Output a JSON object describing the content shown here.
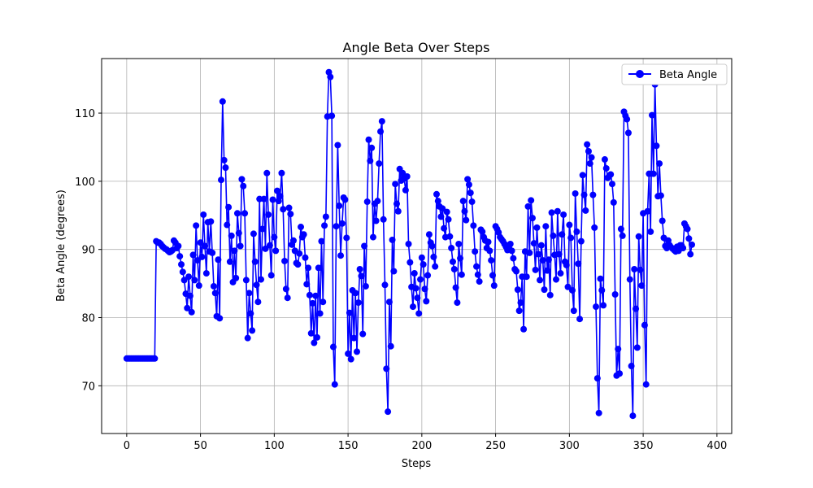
{
  "chart_data": {
    "type": "line",
    "title": "Angle Beta Over Steps",
    "xlabel": "Steps",
    "ylabel": "Beta Angle (degrees)",
    "xlim": [
      -17,
      410
    ],
    "ylim": [
      63,
      118
    ],
    "xticks": [
      0,
      50,
      100,
      150,
      200,
      250,
      300,
      350,
      400
    ],
    "yticks": [
      70,
      80,
      90,
      100,
      110
    ],
    "grid": true,
    "legend": "top-right",
    "color": "#0000ff",
    "marker": "circle",
    "series": [
      {
        "name": "Beta Angle",
        "values": [
          74.0,
          74.0,
          74.0,
          74.0,
          74.0,
          74.0,
          74.0,
          74.0,
          74.0,
          74.0,
          74.0,
          74.0,
          74.0,
          74.0,
          74.0,
          74.0,
          74.0,
          74.0,
          74.0,
          74.0,
          91.2,
          91.0,
          91.0,
          90.8,
          90.5,
          90.3,
          90.1,
          90.0,
          89.8,
          89.6,
          89.7,
          89.9,
          91.3,
          91.0,
          90.2,
          90.5,
          89.0,
          87.8,
          86.7,
          85.5,
          83.5,
          81.4,
          86.0,
          83.2,
          80.8,
          89.2,
          85.5,
          93.5,
          88.4,
          84.7,
          91.0,
          88.9,
          95.1,
          90.5,
          86.5,
          94.0,
          89.7,
          94.1,
          89.5,
          84.6,
          83.6,
          80.2,
          88.5,
          79.9,
          100.2,
          111.7,
          103.1,
          102.0,
          93.6,
          96.2,
          88.2,
          92.0,
          85.2,
          89.8,
          85.8,
          95.3,
          92.4,
          90.5,
          100.3,
          99.3,
          95.3,
          85.5,
          77.0,
          83.6,
          80.6,
          78.1,
          92.3,
          88.2,
          84.8,
          82.3,
          97.4,
          85.6,
          93.0,
          97.4,
          90.1,
          101.2,
          95.1,
          90.6,
          86.2,
          97.3,
          91.8,
          89.8,
          98.6,
          97.1,
          97.8,
          101.2,
          95.9,
          88.3,
          84.2,
          82.9,
          96.1,
          95.2,
          90.7,
          91.3,
          89.8,
          88.0,
          87.8,
          89.4,
          93.3,
          91.8,
          92.2,
          88.8,
          84.9,
          87.3,
          83.3,
          77.7,
          82.1,
          76.3,
          83.2,
          77.1,
          87.3,
          80.6,
          91.2,
          82.3,
          93.5,
          94.8,
          109.5,
          116.0,
          115.3,
          109.6,
          75.7,
          70.2,
          93.4,
          105.3,
          96.4,
          89.1,
          93.8,
          97.6,
          97.3,
          91.7,
          74.7,
          80.7,
          73.9,
          84.0,
          77.0,
          83.6,
          75.0,
          82.2,
          87.1,
          86.1,
          77.6,
          90.5,
          84.6,
          97.0,
          106.1,
          103.0,
          104.9,
          91.8,
          96.7,
          94.2,
          97.1,
          102.6,
          107.3,
          108.8,
          94.4,
          84.8,
          72.5,
          66.2,
          82.3,
          75.8,
          91.4,
          86.8,
          99.6,
          96.7,
          95.6,
          101.8,
          100.1,
          101.2,
          100.4,
          98.7,
          100.7,
          90.8,
          88.1,
          84.5,
          81.6,
          86.5,
          84.3,
          82.9,
          80.6,
          85.6,
          88.8,
          87.8,
          84.2,
          82.4,
          86.2,
          92.2,
          91.0,
          90.5,
          88.9,
          87.5,
          98.1,
          97.1,
          96.3,
          94.8,
          96.0,
          93.1,
          91.8,
          95.5,
          94.4,
          91.9,
          90.2,
          88.2,
          87.1,
          84.4,
          82.2,
          90.8,
          88.7,
          86.3,
          97.1,
          95.6,
          94.3,
          100.3,
          99.5,
          98.3,
          97.0,
          93.5,
          89.7,
          87.5,
          86.3,
          85.3,
          92.9,
          92.6,
          91.8,
          91.3,
          90.2,
          91.1,
          89.8,
          88.4,
          86.2,
          84.7,
          93.4,
          93.0,
          92.5,
          91.8,
          91.5,
          91.2,
          90.8,
          90.4,
          89.9,
          90.3,
          90.8,
          89.8,
          88.7,
          87.1,
          86.8,
          84.1,
          81.0,
          82.2,
          86.0,
          78.3,
          89.7,
          86.0,
          96.3,
          89.5,
          97.2,
          94.6,
          90.9,
          87.0,
          93.2,
          89.3,
          85.5,
          90.6,
          88.4,
          84.1,
          93.4,
          86.9,
          88.5,
          83.3,
          95.4,
          92.0,
          89.2,
          85.6,
          95.6,
          89.3,
          86.5,
          92.2,
          95.1,
          88.2,
          87.7,
          84.5,
          93.6,
          91.7,
          84.0,
          81.0,
          98.2,
          92.6,
          87.9,
          79.8,
          91.2,
          100.9,
          98.0,
          95.7,
          105.4,
          104.4,
          102.6,
          103.5,
          98.0,
          93.2,
          81.6,
          71.1,
          66.0,
          85.7,
          84.0,
          81.8,
          103.2,
          101.9,
          100.5,
          100.8,
          101.0,
          99.6,
          96.9,
          83.4,
          71.5,
          75.4,
          71.8,
          93.0,
          92.0,
          110.2,
          109.6,
          109.1,
          107.1,
          85.6,
          72.9,
          65.6,
          87.1,
          81.3,
          75.6,
          91.9,
          87.0,
          84.7,
          95.3,
          78.9,
          70.2,
          95.6,
          101.1,
          92.6,
          109.7,
          101.1,
          114.2,
          105.2,
          97.8,
          102.6,
          97.9,
          94.2,
          91.7,
          90.5,
          90.2,
          91.3,
          90.6,
          90.3,
          90.1,
          89.9,
          89.7,
          90.4,
          89.8,
          90.6,
          90.6,
          90.2,
          93.8,
          93.4,
          93.0,
          91.6,
          89.3,
          90.7
        ]
      }
    ]
  }
}
